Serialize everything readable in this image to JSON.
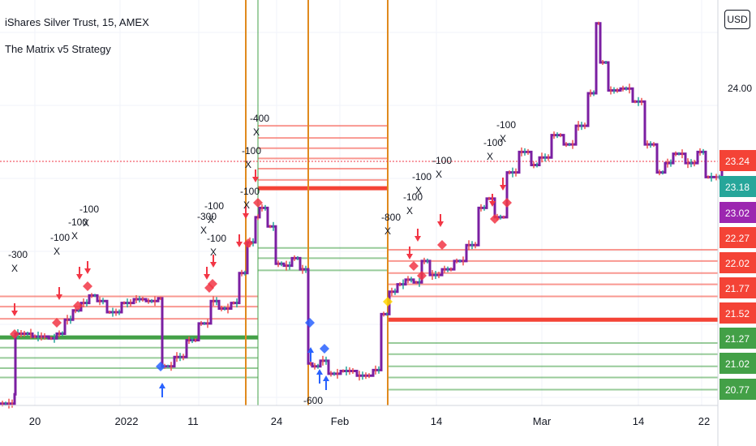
{
  "header": {
    "title": "iShares Silver Trust, 15, AMEX",
    "study": "The Matrix v5 Strategy",
    "currency_button": "USD"
  },
  "colors": {
    "buy_line": "#43a047",
    "sell_line": "#f44336",
    "price_line": "#7b1fa2",
    "vline": "#e08a1e",
    "sell_arrow": "#f23645",
    "buy_arrow": "#2962ff"
  },
  "chart_data": {
    "type": "line",
    "title": "iShares Silver Trust, 15, AMEX",
    "x_ticks": [
      "20",
      "2022",
      "11",
      "24",
      "Feb",
      "14",
      "Mar",
      "14",
      "22"
    ],
    "y_ticks": [
      "24.00"
    ],
    "ylim": [
      20.6,
      24.95
    ],
    "price_labels": [
      {
        "value": "23.24",
        "color": "#f44336"
      },
      {
        "value": "23.18",
        "color": "#26a69a"
      },
      {
        "value": "23.02",
        "color": "#9c27b0"
      },
      {
        "value": "22.27",
        "color": "#f44336"
      },
      {
        "value": "22.02",
        "color": "#f44336"
      },
      {
        "value": "21.77",
        "color": "#f44336"
      },
      {
        "value": "21.52",
        "color": "#f44336"
      },
      {
        "value": "21.27",
        "color": "#43a047"
      },
      {
        "value": "21.02",
        "color": "#43a047"
      },
      {
        "value": "20.77",
        "color": "#43a047"
      }
    ],
    "series": [
      {
        "type": "line",
        "x": [
          0,
          18,
          19,
          40,
          60,
          70,
          80,
          90,
          100,
          110,
          120,
          132,
          150,
          165,
          180,
          195,
          200,
          215,
          230,
          245,
          260,
          270,
          285,
          295,
          305,
          315,
          320,
          330,
          340,
          350,
          360,
          370,
          380,
          385,
          395,
          405,
          420,
          440,
          460,
          470,
          480,
          490,
          500,
          510,
          520,
          530,
          545,
          560,
          575,
          590,
          600,
          610,
          625,
          640,
          655,
          665,
          680,
          695,
          710,
          725,
          735,
          740,
          750,
          765,
          780,
          795,
          810,
          820,
          830,
          845,
          860,
          870,
          880,
          890
        ],
        "y": [
          20.62,
          20.72,
          21.37,
          21.34,
          21.32,
          21.37,
          21.52,
          21.62,
          21.7,
          21.78,
          21.72,
          21.6,
          21.7,
          21.74,
          21.72,
          21.75,
          21.02,
          21.12,
          21.3,
          21.48,
          21.72,
          21.64,
          21.7,
          22.02,
          22.35,
          22.62,
          22.72,
          22.52,
          22.12,
          22.1,
          22.18,
          22.06,
          21.05,
          21.02,
          21.08,
          20.94,
          20.97,
          20.92,
          20.98,
          21.58,
          21.82,
          21.9,
          21.95,
          21.92,
          22.15,
          22.0,
          22.06,
          22.15,
          22.32,
          22.72,
          22.82,
          22.62,
          23.1,
          23.32,
          23.18,
          23.26,
          23.5,
          23.4,
          23.6,
          23.95,
          24.7,
          24.28,
          23.98,
          24.0,
          23.86,
          23.4,
          23.1,
          23.2,
          23.3,
          23.2,
          23.32,
          23.05,
          23.05,
          23.14
        ]
      }
    ],
    "levels": {
      "zone1": {
        "sell": [
          21.77,
          21.66,
          21.53
        ],
        "buy": [
          21.33,
          21.22,
          21.11,
          21.0,
          20.9
        ],
        "strong_buy": 21.33
      },
      "zone2": {
        "sell": [
          23.6,
          23.47,
          23.36,
          23.25,
          23.14,
          23.02
        ],
        "strong_sell": 22.93,
        "buy": [
          22.29,
          22.18,
          22.05
        ]
      },
      "zone3": {
        "sell": [
          22.27,
          22.15,
          22.02,
          21.9,
          21.77
        ],
        "strong_sell": 21.52,
        "buy": [
          21.27,
          21.15,
          21.02,
          20.9,
          20.77
        ]
      }
    },
    "signals": [
      {
        "label": "-300",
        "mark": "X"
      },
      {
        "label": "-100",
        "mark": "X"
      },
      {
        "label": "-100",
        "mark": "X"
      },
      {
        "label": "-100",
        "mark": "X"
      },
      {
        "label": "-300",
        "mark": "X"
      },
      {
        "label": "-100",
        "mark": "X"
      },
      {
        "label": "-100",
        "mark": "X"
      },
      {
        "label": "-100",
        "mark": "X"
      },
      {
        "label": "-100",
        "mark": "X"
      },
      {
        "label": "-400",
        "mark": "X"
      },
      {
        "label": "-800",
        "mark": "X"
      },
      {
        "label": "-100",
        "mark": "X"
      },
      {
        "label": "-100",
        "mark": "X"
      },
      {
        "label": "-100",
        "mark": "X"
      },
      {
        "label": "-100",
        "mark": "X"
      },
      {
        "label": "-100",
        "mark": "X"
      },
      {
        "label": "-600",
        "mark": "X"
      }
    ]
  }
}
